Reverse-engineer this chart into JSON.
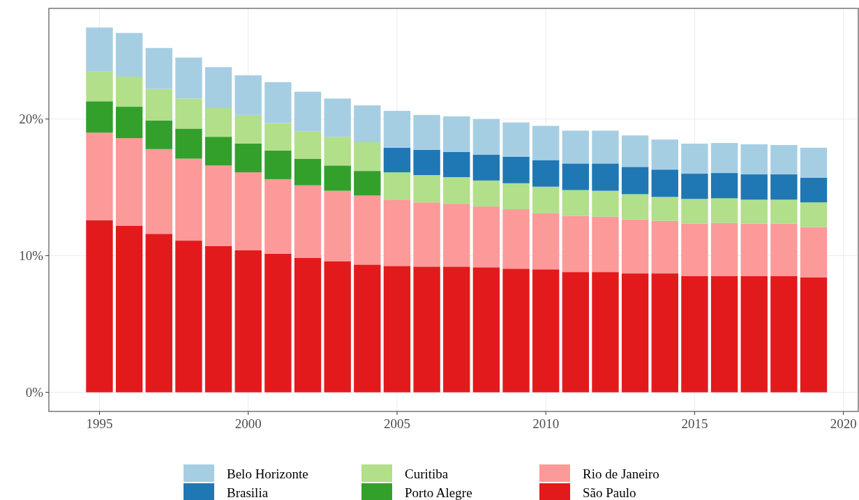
{
  "chart_data": {
    "type": "bar",
    "stacked": true,
    "x": [
      1995,
      1996,
      1997,
      1998,
      1999,
      2000,
      2001,
      2002,
      2003,
      2004,
      2005,
      2006,
      2007,
      2008,
      2009,
      2010,
      2011,
      2012,
      2013,
      2014,
      2015,
      2016,
      2017,
      2018,
      2019
    ],
    "series": [
      {
        "name": "São Paulo",
        "color": "#e31a1c",
        "values": [
          12.6,
          12.2,
          11.6,
          11.1,
          10.7,
          10.4,
          10.15,
          9.85,
          9.6,
          9.35,
          9.25,
          9.2,
          9.2,
          9.15,
          9.05,
          9.0,
          8.8,
          8.8,
          8.7,
          8.7,
          8.5,
          8.5,
          8.5,
          8.5,
          8.4
        ]
      },
      {
        "name": "Rio de Janeiro",
        "color": "#fb9a99",
        "values": [
          6.4,
          6.4,
          6.2,
          6.0,
          5.9,
          5.7,
          5.45,
          5.3,
          5.15,
          5.05,
          4.85,
          4.7,
          4.6,
          4.45,
          4.35,
          4.1,
          4.1,
          4.05,
          3.95,
          3.85,
          3.85,
          3.9,
          3.85,
          3.85,
          3.7
        ]
      },
      {
        "name": "Porto Alegre",
        "color": "#33a02c",
        "values": [
          2.3,
          2.3,
          2.1,
          2.2,
          2.1,
          2.1,
          2.1,
          1.95,
          1.85,
          1.8,
          null,
          null,
          null,
          null,
          null,
          null,
          null,
          null,
          null,
          null,
          null,
          null,
          null,
          null,
          null
        ]
      },
      {
        "name": "Curitiba",
        "color": "#b2df8a",
        "values": [
          2.2,
          2.2,
          2.3,
          2.2,
          2.1,
          2.1,
          2.0,
          2.0,
          2.1,
          2.1,
          2.0,
          2.0,
          1.95,
          1.9,
          1.9,
          1.95,
          1.9,
          1.9,
          1.85,
          1.75,
          1.8,
          1.8,
          1.75,
          1.75,
          1.8
        ]
      },
      {
        "name": "Brasilia",
        "color": "#1f78b4",
        "values": [
          null,
          null,
          null,
          null,
          null,
          null,
          null,
          null,
          null,
          null,
          1.8,
          1.85,
          1.85,
          1.9,
          1.95,
          1.95,
          1.95,
          2.0,
          2.0,
          2.0,
          1.85,
          1.85,
          1.85,
          1.85,
          1.8
        ]
      },
      {
        "name": "Belo Horizonte",
        "color": "#a6cee3",
        "values": [
          3.2,
          3.2,
          3.0,
          3.0,
          3.0,
          2.9,
          3.0,
          2.9,
          2.8,
          2.7,
          2.7,
          2.55,
          2.6,
          2.6,
          2.5,
          2.5,
          2.4,
          2.4,
          2.3,
          2.2,
          2.2,
          2.2,
          2.2,
          2.15,
          2.2
        ]
      }
    ],
    "xlim": [
      1993.3,
      2020.5
    ],
    "xticks": [
      1995,
      2000,
      2005,
      2010,
      2015,
      2020
    ],
    "ylim": [
      -1.4,
      28.1
    ],
    "yticks": [
      {
        "value": 0,
        "label": "0%"
      },
      {
        "value": 10,
        "label": "10%"
      },
      {
        "value": 20,
        "label": "20%"
      }
    ],
    "grid": true,
    "legend": "bottom"
  }
}
